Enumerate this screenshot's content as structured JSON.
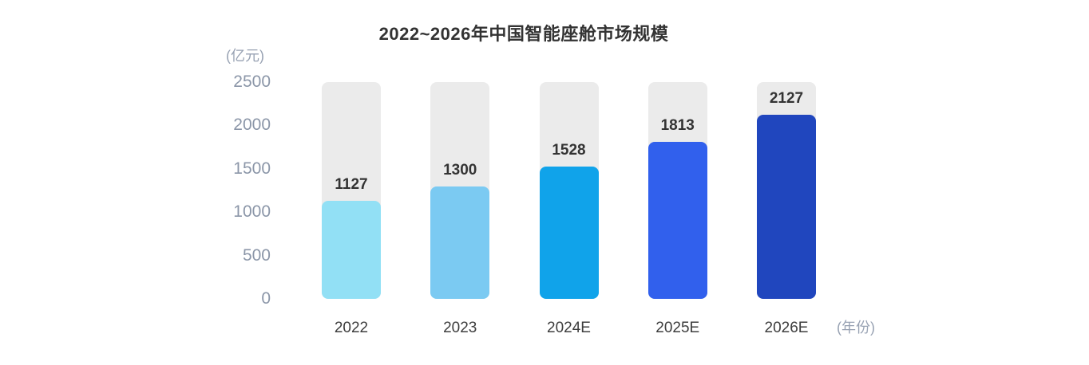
{
  "page": {
    "background_color": "#ffffff"
  },
  "chart_data": {
    "type": "bar",
    "title": "2022~2026年中国智能座舱市场规模",
    "categories": [
      "2022",
      "2023",
      "2024E",
      "2025E",
      "2026E"
    ],
    "values": [
      1127,
      1300,
      1528,
      1813,
      2127
    ],
    "value_labels": [
      "1127",
      "1300",
      "1528",
      "1813",
      "2127"
    ],
    "ylabel": "(亿元)",
    "xlabel": "(年份)",
    "ylim": [
      0,
      2500
    ],
    "yticks": [
      0,
      500,
      1000,
      1500,
      2000,
      2500
    ],
    "grid": false,
    "legend": false,
    "colors": {
      "bars": [
        "#92E0F5",
        "#7BCAF2",
        "#10A3EA",
        "#3160ED",
        "#2046BE"
      ],
      "track": "#EBEBEB",
      "title_text": "#333333",
      "value_label_text": "#333333",
      "x_tick_text": "#3D3D3D",
      "y_tick_text": "#8B96A8",
      "unit_label_text": "#98A2B3"
    }
  }
}
